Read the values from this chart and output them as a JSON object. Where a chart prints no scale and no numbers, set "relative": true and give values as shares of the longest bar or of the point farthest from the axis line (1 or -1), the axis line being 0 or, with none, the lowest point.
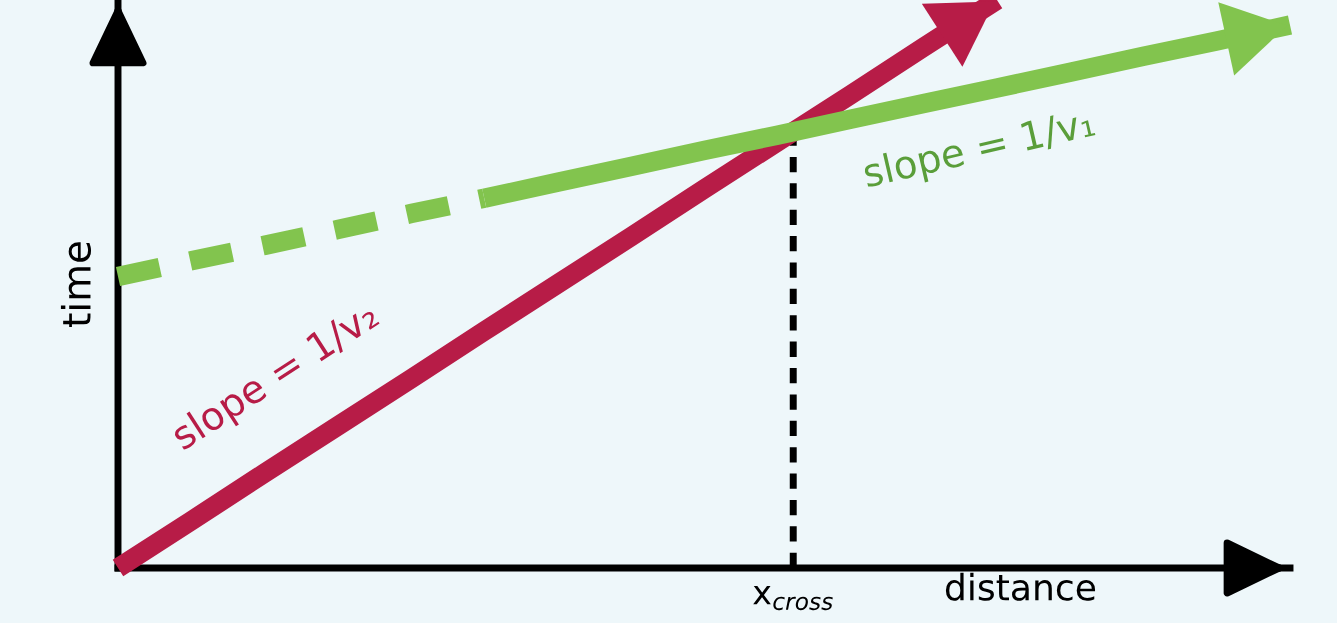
{
  "chart_data": {
    "type": "line",
    "relative": true,
    "xlabel": "distance",
    "ylabel": "time",
    "categories": [
      null,
      null,
      null,
      null,
      null,
      null,
      null,
      null,
      null,
      null,
      null,
      null,
      null,
      null,
      null,
      null,
      null
    ],
    "series": [
      {
        "color": "#b71c47",
        "values": [
          0,
          0.083,
          0.167,
          0.25,
          0.333,
          0.417,
          0.5,
          0.583,
          0.667,
          0.75,
          0.833,
          0.917,
          1.0,
          null,
          null,
          null,
          null
        ],
        "line_style": "solid"
      },
      {
        "color": "#82c44e",
        "values": [
          0.513,
          0.541,
          0.568,
          0.596,
          0.624,
          0.651,
          null,
          null,
          null,
          null,
          null,
          null,
          null,
          null,
          null,
          null,
          null
        ],
        "line_style": "dashed"
      },
      {
        "color": "#82c44e",
        "values": [
          null,
          null,
          null,
          null,
          null,
          0.651,
          0.679,
          0.707,
          0.735,
          0.762,
          0.79,
          0.818,
          0.845,
          0.873,
          0.901,
          0.928,
          0.956
        ],
        "line_style": "solid"
      }
    ],
    "annotations": [
      "slope = 1/v₂",
      "slope = 1/v₁",
      "x$_{cross}$"
    ]
  }
}
